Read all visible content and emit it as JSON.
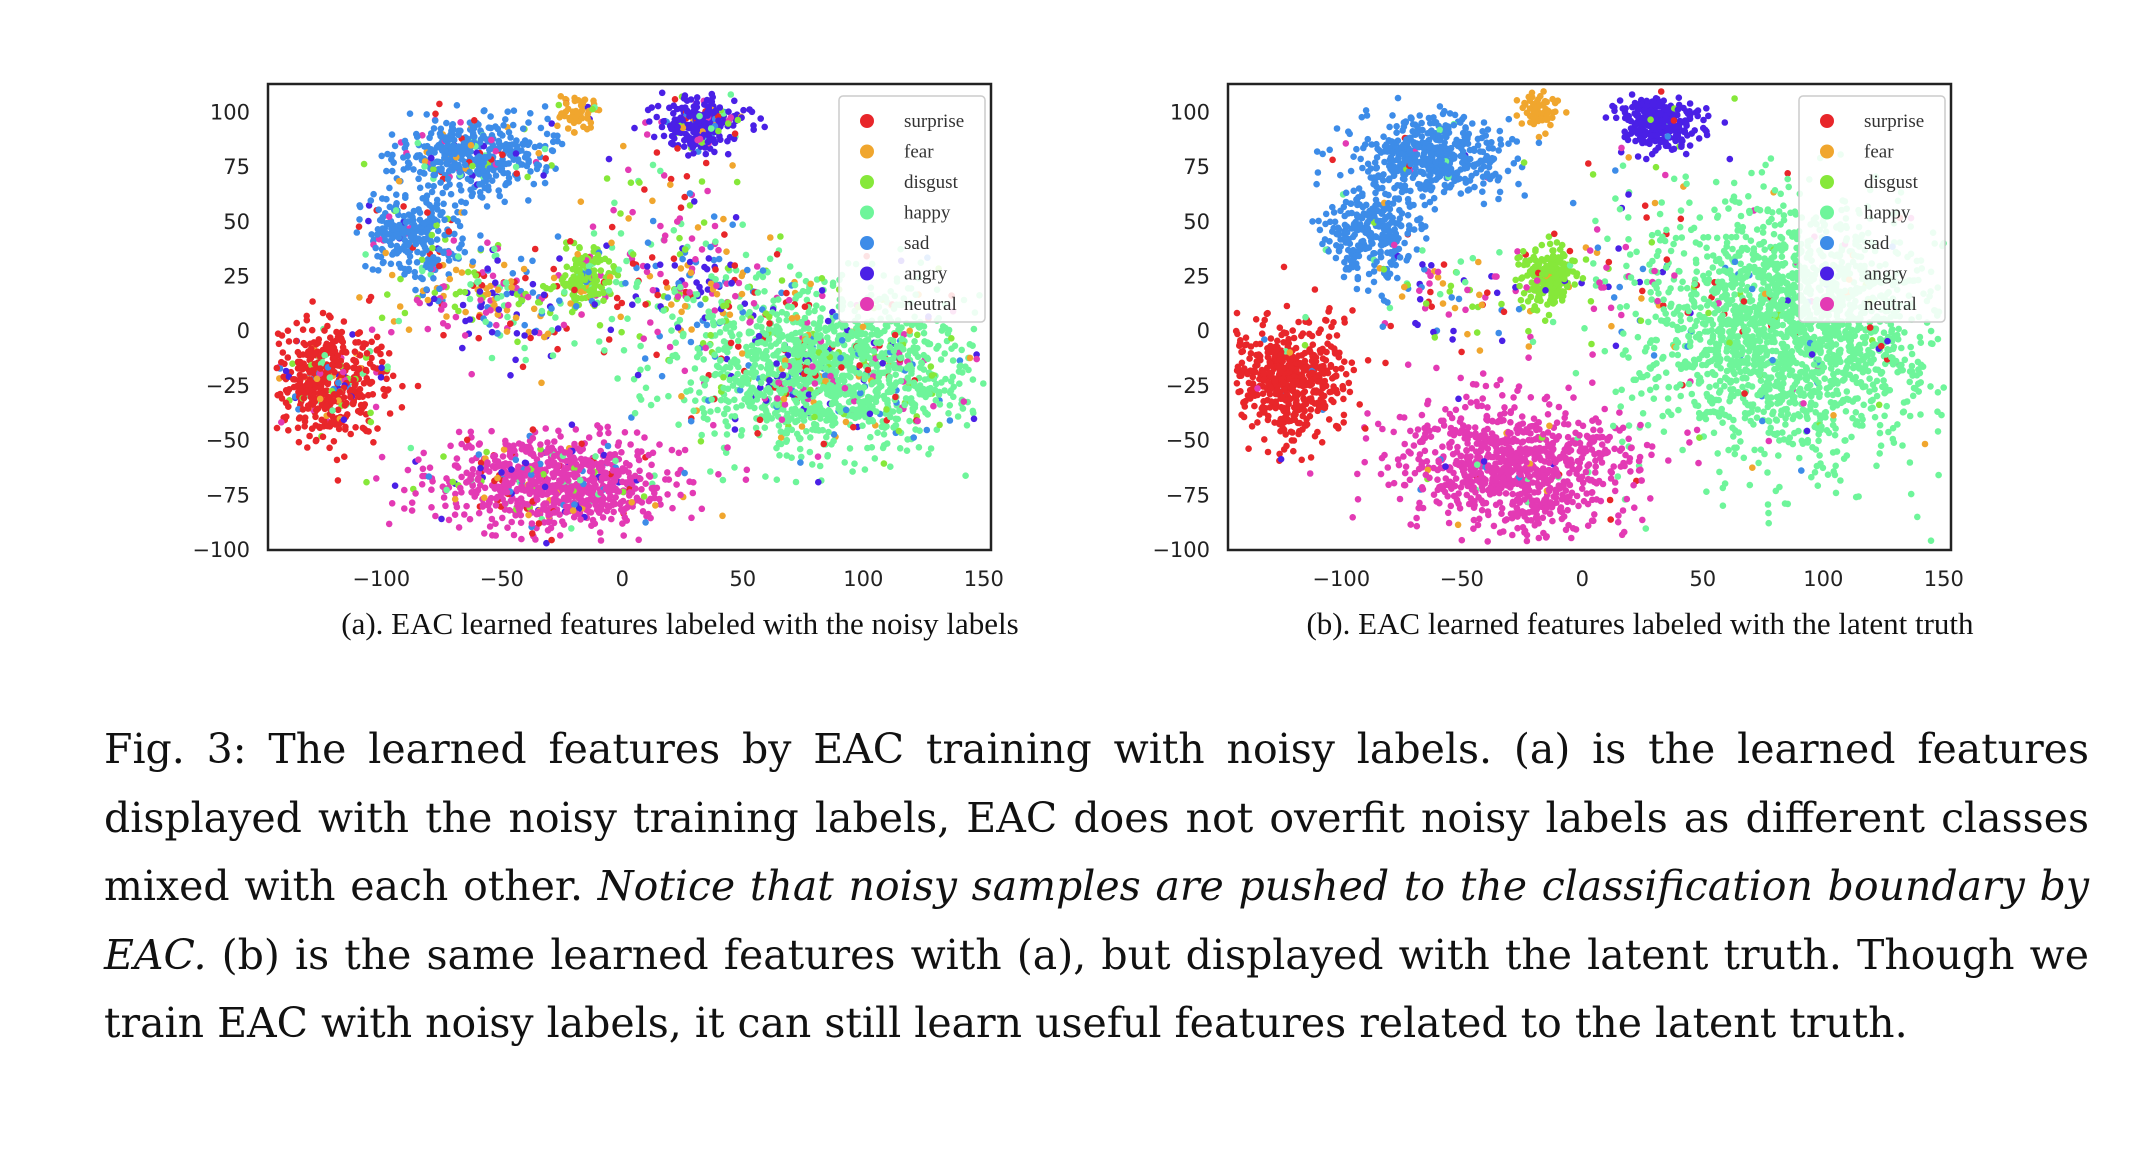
{
  "chart_data": [
    {
      "type": "scatter",
      "panel": "a",
      "caption": "(a). EAC learned features labeled with the noisy labels",
      "xlim": [
        -147,
        153
      ],
      "ylim": [
        -100,
        113
      ],
      "xticks": [
        -100,
        -50,
        0,
        50,
        100,
        150
      ],
      "yticks": [
        100,
        75,
        50,
        25,
        0,
        -25,
        -50,
        -75,
        -100
      ],
      "xtick_labels": [
        "−100",
        "−50",
        "0",
        "50",
        "100",
        "150"
      ],
      "ytick_labels": [
        "100",
        "75",
        "50",
        "25",
        "0",
        "−25",
        "−50",
        "−75",
        "−100"
      ],
      "legend_placement": "top-right",
      "grid": false,
      "series": [
        {
          "name": "surprise",
          "color": "#e8262a",
          "clusters": [
            {
              "x": -122,
              "y": -22,
              "spread": [
                12,
                13
              ],
              "count": 520
            }
          ]
        },
        {
          "name": "fear",
          "color": "#f0a62e",
          "clusters": [
            {
              "x": -18,
              "y": 101,
              "spread": [
                4,
                5
              ],
              "count": 60
            }
          ]
        },
        {
          "name": "disgust",
          "color": "#86e83a",
          "clusters": [
            {
              "x": -15,
              "y": 25,
              "spread": [
                6,
                7
              ],
              "count": 170
            }
          ]
        },
        {
          "name": "happy",
          "color": "#6ef59a",
          "clusters": [
            {
              "x": 85,
              "y": -18,
              "spread": [
                30,
                19
              ],
              "count": 1500
            }
          ]
        },
        {
          "name": "sad",
          "color": "#3d8ce8",
          "clusters": [
            {
              "x": -62,
              "y": 80,
              "spread": [
                16,
                9
              ],
              "count": 450
            },
            {
              "x": -88,
              "y": 45,
              "spread": [
                10,
                10
              ],
              "count": 250
            }
          ]
        },
        {
          "name": "angry",
          "color": "#4a20e6",
          "clusters": [
            {
              "x": 32,
              "y": 95,
              "spread": [
                9,
                6
              ],
              "count": 260
            }
          ]
        },
        {
          "name": "neutral",
          "color": "#e33ab4",
          "clusters": [
            {
              "x": -28,
              "y": -70,
              "spread": [
                25,
                11
              ],
              "count": 850
            }
          ]
        }
      ],
      "noise_fraction": 0.22
    },
    {
      "type": "scatter",
      "panel": "b",
      "caption": "(b). EAC learned features labeled with the latent truth",
      "xlim": [
        -147,
        153
      ],
      "ylim": [
        -100,
        113
      ],
      "xticks": [
        -100,
        -50,
        0,
        50,
        100,
        150
      ],
      "yticks": [
        100,
        75,
        50,
        25,
        0,
        -25,
        -50,
        -75,
        -100
      ],
      "xtick_labels": [
        "−100",
        "−50",
        "0",
        "50",
        "100",
        "150"
      ],
      "ytick_labels": [
        "100",
        "75",
        "50",
        "25",
        "0",
        "−25",
        "−50",
        "−75",
        "−100"
      ],
      "legend_placement": "top-right",
      "grid": false,
      "series": [
        {
          "name": "surprise",
          "color": "#e8262a",
          "clusters": [
            {
              "x": -122,
              "y": -22,
              "spread": [
                12,
                13
              ],
              "count": 540
            }
          ]
        },
        {
          "name": "fear",
          "color": "#f0a62e",
          "clusters": [
            {
              "x": -18,
              "y": 101,
              "spread": [
                4,
                5
              ],
              "count": 70
            }
          ]
        },
        {
          "name": "disgust",
          "color": "#86e83a",
          "clusters": [
            {
              "x": -15,
              "y": 25,
              "spread": [
                6,
                7
              ],
              "count": 200
            }
          ]
        },
        {
          "name": "happy",
          "color": "#6ef59a",
          "clusters": [
            {
              "x": 88,
              "y": 0,
              "spread": [
                30,
                28
              ],
              "count": 2000
            }
          ]
        },
        {
          "name": "sad",
          "color": "#3d8ce8",
          "clusters": [
            {
              "x": -62,
              "y": 80,
              "spread": [
                16,
                9
              ],
              "count": 480
            },
            {
              "x": -88,
              "y": 45,
              "spread": [
                10,
                10
              ],
              "count": 270
            }
          ]
        },
        {
          "name": "angry",
          "color": "#4a20e6",
          "clusters": [
            {
              "x": 32,
              "y": 95,
              "spread": [
                9,
                6
              ],
              "count": 280
            }
          ]
        },
        {
          "name": "neutral",
          "color": "#e33ab4",
          "clusters": [
            {
              "x": -28,
              "y": -62,
              "spread": [
                25,
                15
              ],
              "count": 900
            }
          ]
        }
      ],
      "noise_fraction": 0.04
    }
  ],
  "caption": {
    "part1": "Fig. 3: The learned features by EAC training with noisy labels. (a) is the learned features displayed with the noisy training labels, EAC does not overfit noisy labels as different classes mixed with each other. ",
    "italic": "Notice that noisy samples are pushed to the classification boundary by EAC.",
    "part2": " (b) is the same learned features with (a), but displayed with the latent truth. Though we train EAC with noisy labels, it can still learn useful features related to the latent truth."
  }
}
